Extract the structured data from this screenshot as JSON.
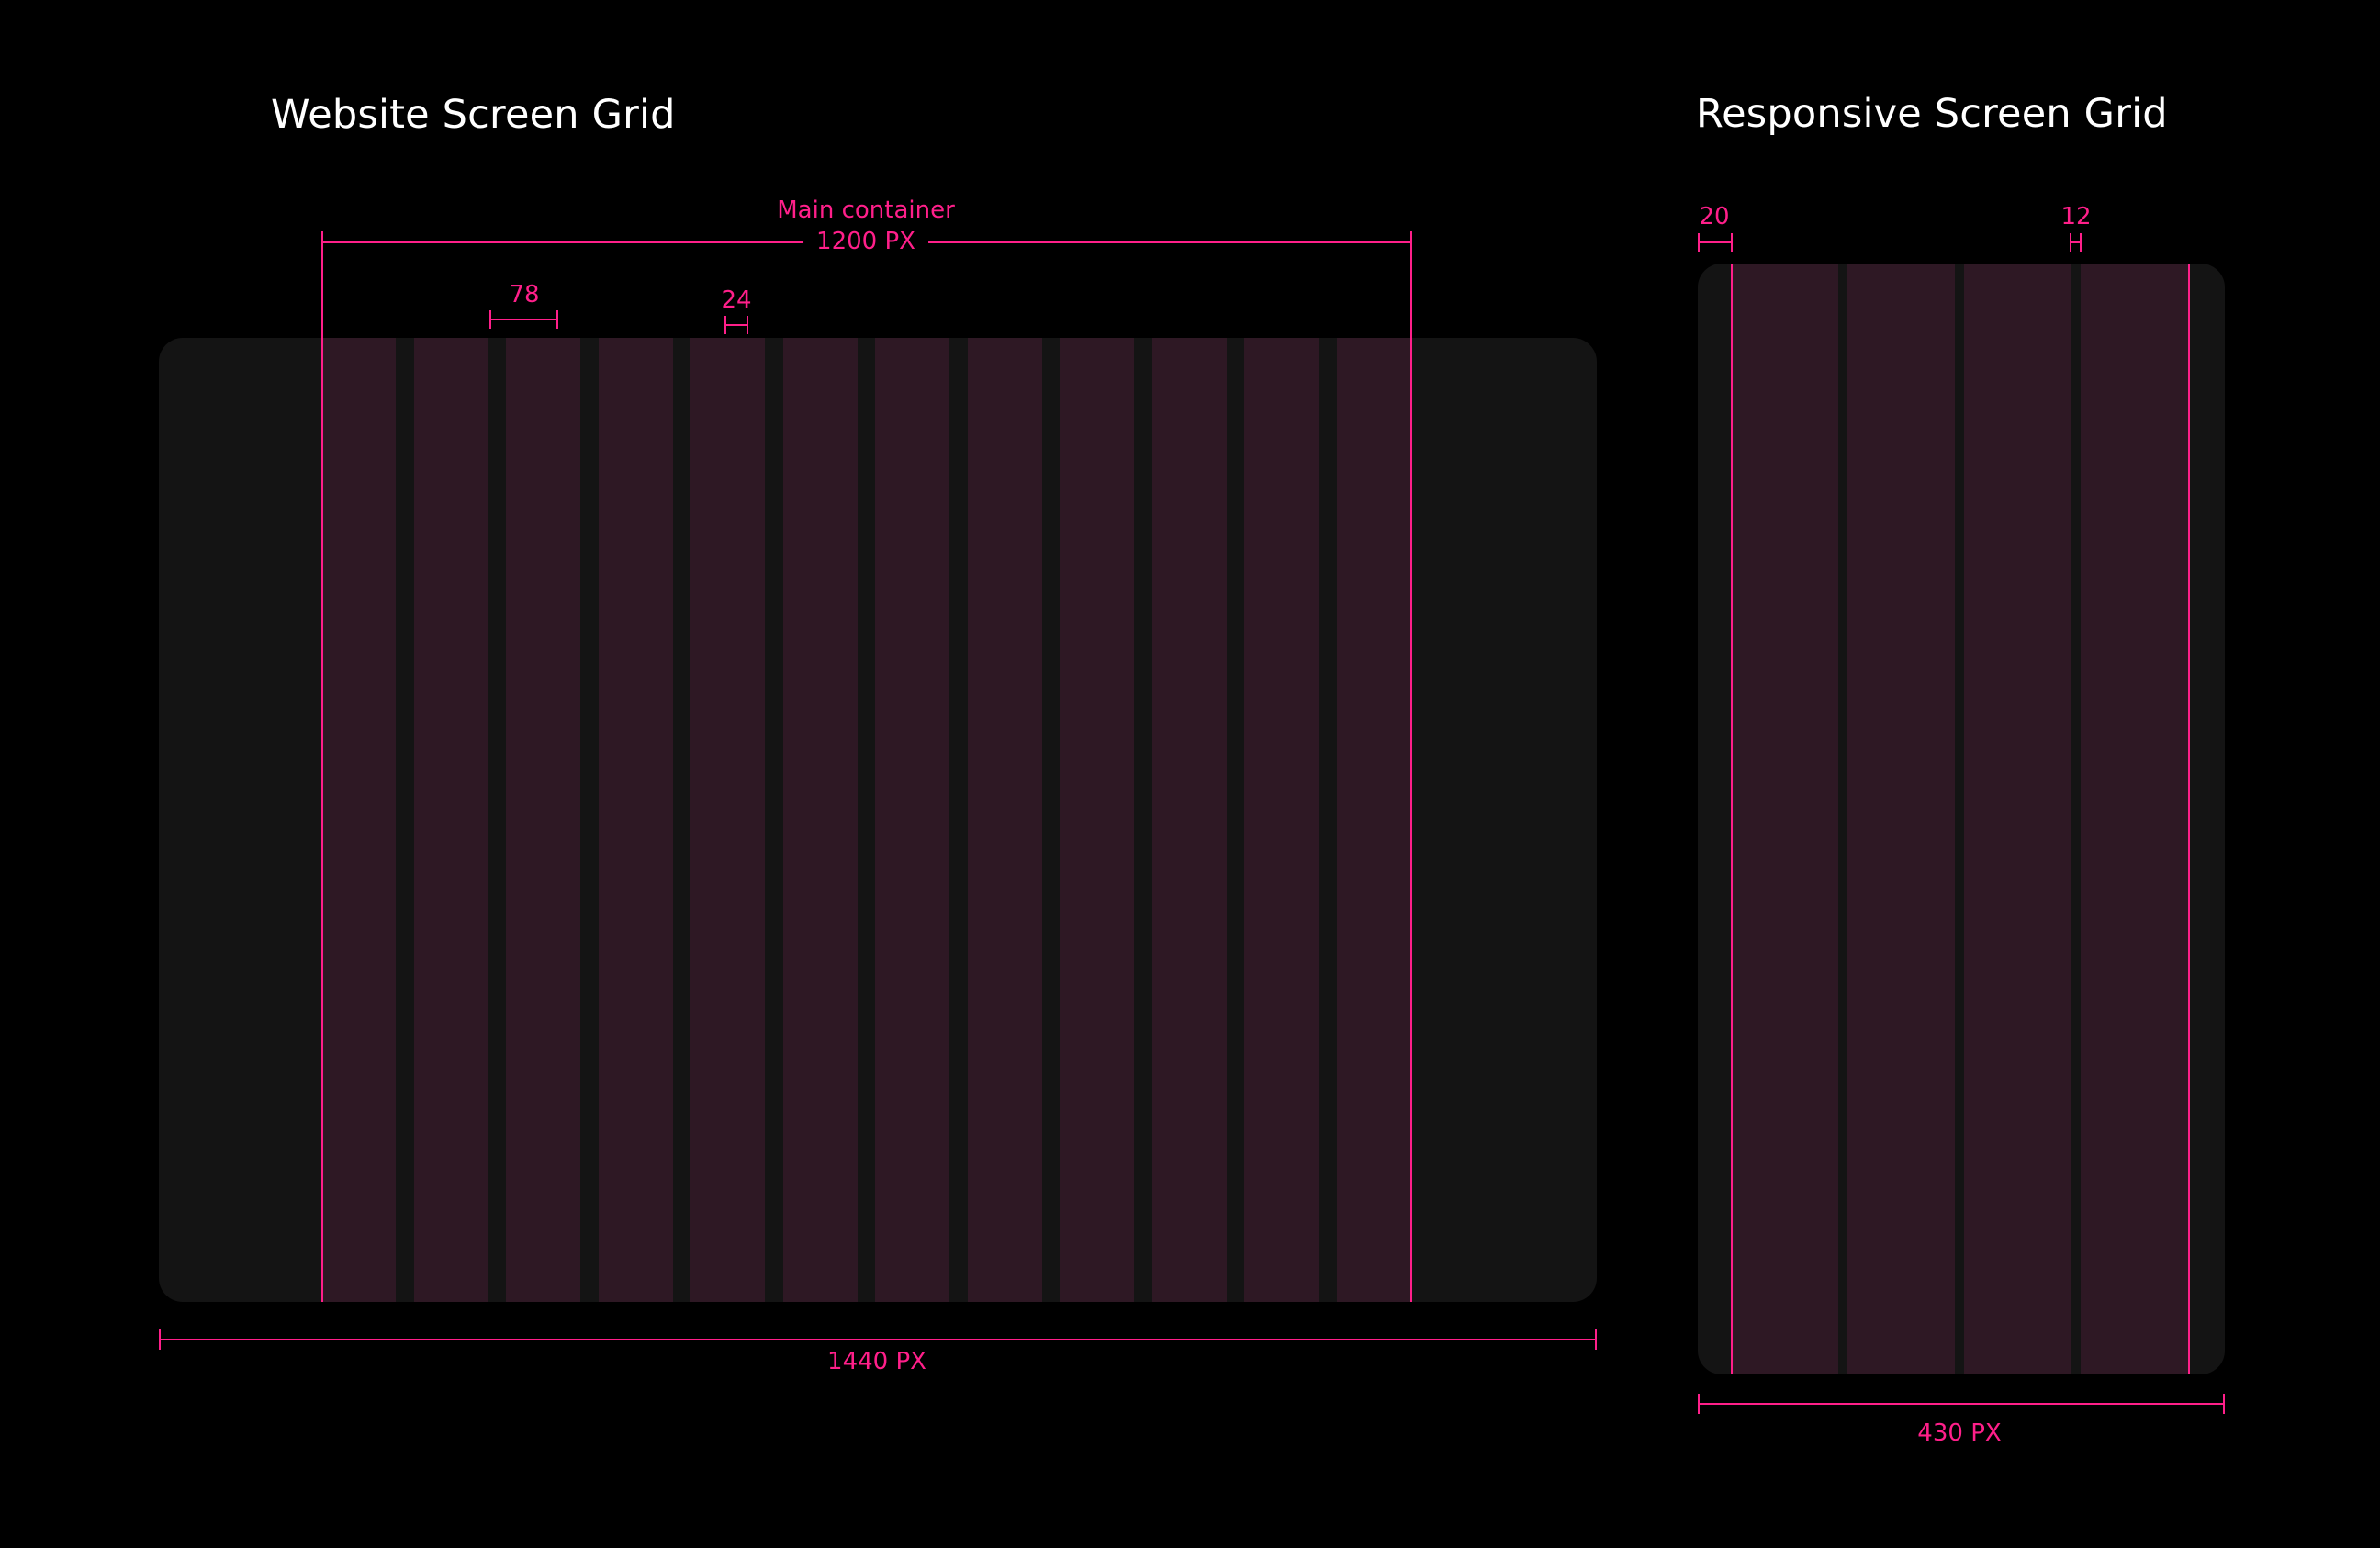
{
  "website_grid": {
    "title": "Website Screen Grid",
    "container_label": "Main container",
    "container_width_label": "1200 PX",
    "column_width_label": "78",
    "gutter_label": "24",
    "screen_width_label": "1440 PX",
    "columns": 12
  },
  "responsive_grid": {
    "title": "Responsive Screen Grid",
    "margin_label": "20",
    "gutter_label": "12",
    "screen_width_label": "430 PX",
    "columns": 4
  },
  "colors": {
    "background": "#000000",
    "frame": "#141414",
    "column": "#2e1824",
    "accent": "#ff1f8a",
    "title_text": "#ffffff"
  }
}
